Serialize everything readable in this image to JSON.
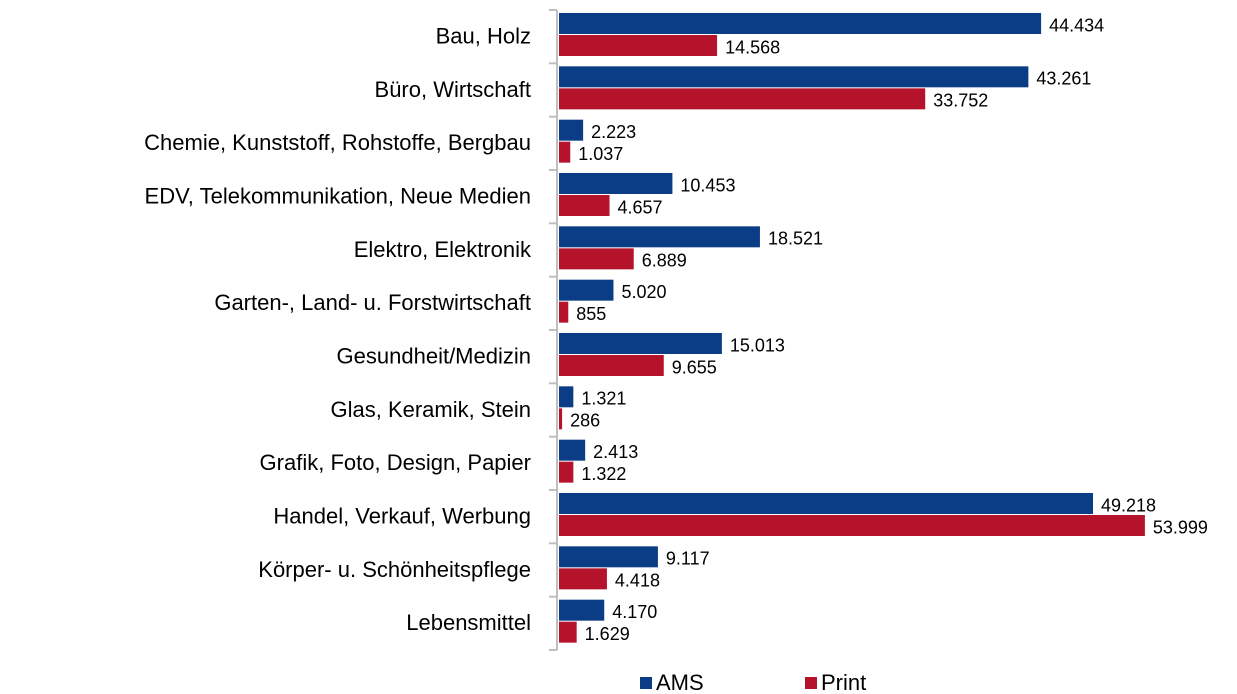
{
  "chart_data": {
    "type": "hbar",
    "categories": [
      "Bau, Holz",
      "Büro, Wirtschaft",
      "Chemie, Kunststoff, Rohstoffe, Bergbau",
      "EDV, Telekommunikation, Neue Medien",
      "Elektro, Elektronik",
      "Garten-, Land- u. Forstwirtschaft",
      "Gesundheit/Medizin",
      "Glas, Keramik, Stein",
      "Grafik, Foto, Design, Papier",
      "Handel, Verkauf, Werbung",
      "Körper- u. Schönheitspflege",
      "Lebensmittel"
    ],
    "series": [
      {
        "name": "AMS",
        "color": "#0b3d86",
        "values": [
          44434,
          43261,
          2223,
          10453,
          18521,
          5020,
          15013,
          1321,
          2413,
          49218,
          9117,
          4170
        ],
        "value_labels": [
          "44.434",
          "43.261",
          "2.223",
          "10.453",
          "18.521",
          "5.020",
          "15.013",
          "1.321",
          "2.413",
          "49.218",
          "9.117",
          "4.170"
        ]
      },
      {
        "name": "Print",
        "color": "#b5122b",
        "values": [
          14568,
          33752,
          1037,
          4657,
          6889,
          855,
          9655,
          286,
          1322,
          53999,
          4418,
          1629
        ],
        "value_labels": [
          "14.568",
          "33.752",
          "1.037",
          "4.657",
          "6.889",
          "855",
          "9.655",
          "286",
          "1.322",
          "53.999",
          "4.418",
          "1.629"
        ]
      }
    ],
    "xlim": [
      0,
      60000
    ],
    "legend": "bottom"
  }
}
